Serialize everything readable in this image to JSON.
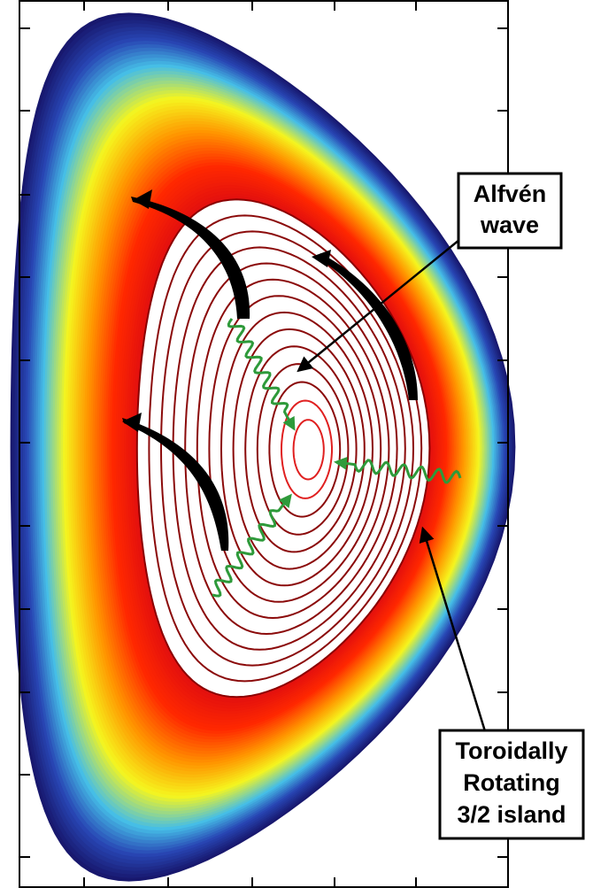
{
  "labels": {
    "alfven_wave": [
      "Alfvén",
      "wave"
    ],
    "island": [
      "Toroidally",
      "Rotating",
      "3/2 island"
    ]
  }
}
